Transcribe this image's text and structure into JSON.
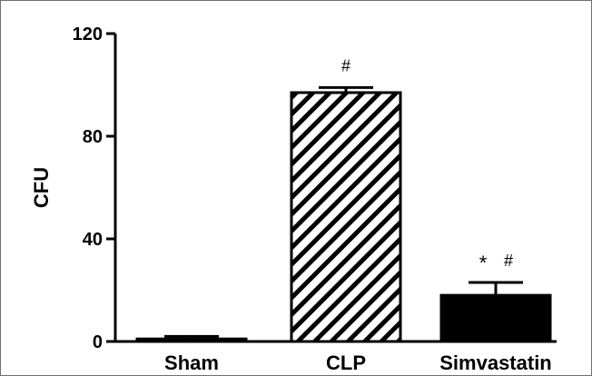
{
  "chart_data": {
    "type": "bar",
    "title": "",
    "xlabel": "",
    "ylabel": "CFU",
    "ylim": [
      0,
      120
    ],
    "yticks": [
      0,
      40,
      80,
      120
    ],
    "categories": [
      "Sham",
      "CLP",
      "Simvastatin"
    ],
    "values": [
      1,
      97,
      18
    ],
    "errors": [
      1,
      2,
      5
    ],
    "fills": [
      "solid-black",
      "diagonal-hatch",
      "solid-black"
    ],
    "annotations": [
      {
        "category": "CLP",
        "marks": [
          "#"
        ]
      },
      {
        "category": "Simvastatin",
        "marks": [
          "*",
          "#"
        ]
      }
    ],
    "grid": false,
    "legend": "none"
  }
}
